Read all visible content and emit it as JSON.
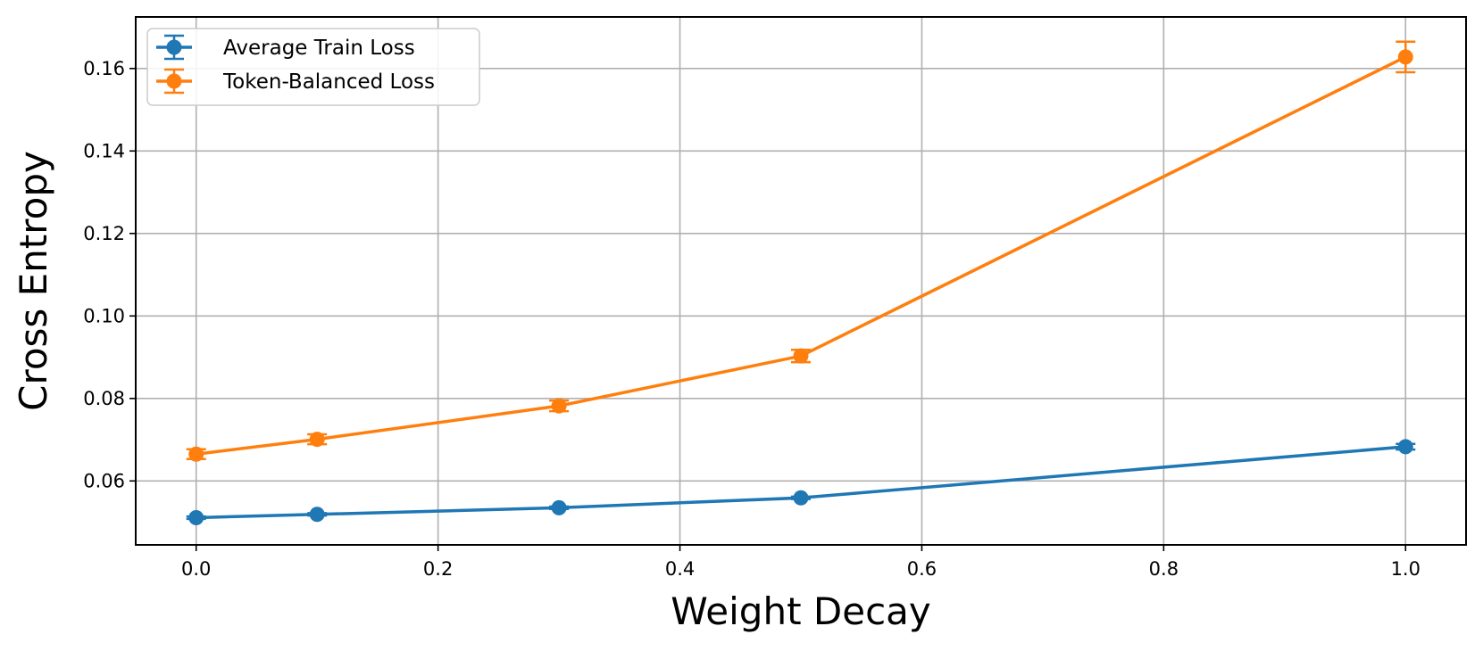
{
  "chart_data": {
    "type": "line",
    "xlabel": "Weight Decay",
    "ylabel": "Cross Entropy",
    "xlim": [
      -0.05,
      1.05
    ],
    "ylim": [
      0.0445,
      0.1725
    ],
    "x_ticks": [
      0.0,
      0.2,
      0.4,
      0.6,
      0.8,
      1.0
    ],
    "x_tick_labels": [
      "0.0",
      "0.2",
      "0.4",
      "0.6",
      "0.8",
      "1.0"
    ],
    "y_ticks": [
      0.06,
      0.08,
      0.1,
      0.12,
      0.14,
      0.16
    ],
    "y_tick_labels": [
      "0.06",
      "0.08",
      "0.10",
      "0.12",
      "0.14",
      "0.16"
    ],
    "grid": true,
    "legend_position": "top-left",
    "series": [
      {
        "name": "Average Train Loss",
        "color": "#1f77b4",
        "x": [
          0.0,
          0.1,
          0.3,
          0.5,
          1.0
        ],
        "y": [
          0.0511,
          0.0519,
          0.0535,
          0.0559,
          0.0683
        ],
        "err": [
          0.0003,
          0.0003,
          0.0003,
          0.0003,
          0.0007
        ]
      },
      {
        "name": "Token-Balanced Loss",
        "color": "#ff7f0e",
        "x": [
          0.0,
          0.1,
          0.3,
          0.5,
          1.0
        ],
        "y": [
          0.0665,
          0.0701,
          0.0782,
          0.0903,
          0.1628
        ],
        "err": [
          0.0012,
          0.0012,
          0.0013,
          0.0015,
          0.0037
        ]
      }
    ]
  }
}
